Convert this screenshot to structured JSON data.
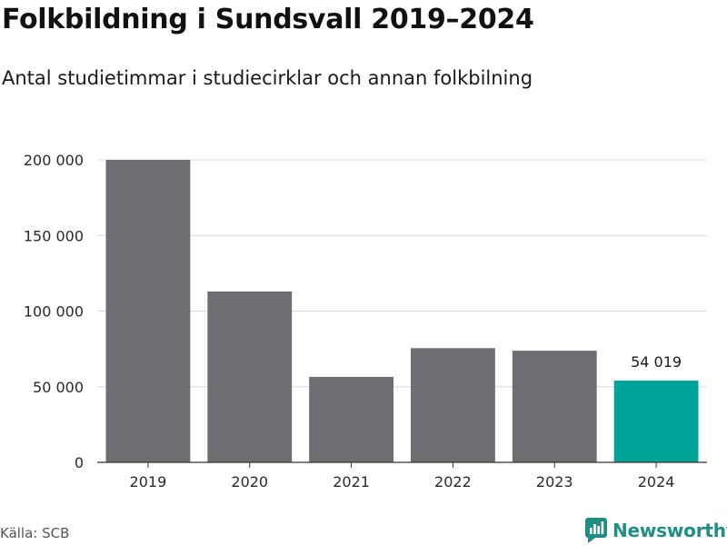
{
  "header": {
    "title": "Folkbildning i Sundsvall 2019–2024",
    "subtitle": "Antal studietimmar i studiecirklar och annan folkbilning"
  },
  "footer": {
    "source": "Källa: SCB",
    "brand": "Newsworthy"
  },
  "colors": {
    "bar": "#6e6d72",
    "highlight": "#00a398",
    "grid": "#d9d9d9",
    "axis": "#333333",
    "brand": "#1f8f86"
  },
  "chart_data": {
    "type": "bar",
    "title": "Folkbildning i Sundsvall 2019–2024",
    "subtitle": "Antal studietimmar i studiecirklar och annan folkbilning",
    "categories": [
      "2019",
      "2020",
      "2021",
      "2022",
      "2023",
      "2024"
    ],
    "values": [
      200000,
      113000,
      56500,
      75500,
      73800,
      54019
    ],
    "highlight_index": 5,
    "data_labels": [
      {
        "index": 5,
        "text": "54 019"
      }
    ],
    "ylim": [
      0,
      200000
    ],
    "yticks": [
      0,
      50000,
      100000,
      150000,
      200000
    ],
    "ytick_labels": [
      "0",
      "50 000",
      "100 000",
      "150 000",
      "200 000"
    ],
    "xlabel": "",
    "ylabel": "",
    "grid": true
  }
}
